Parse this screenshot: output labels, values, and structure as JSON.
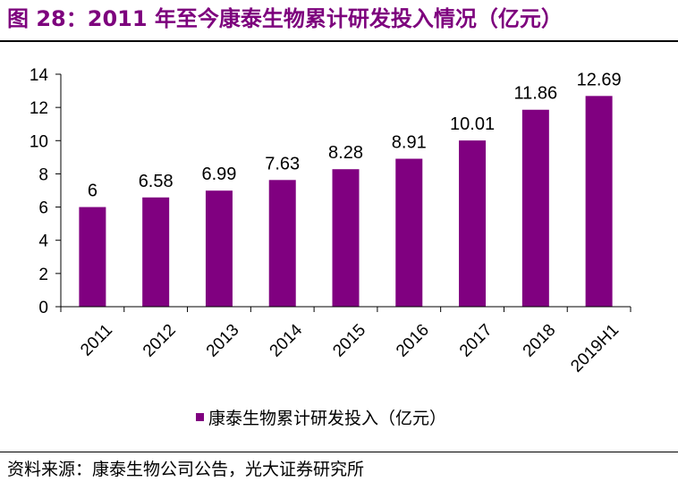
{
  "figure": {
    "title": "图 28：2011 年至今康泰生物累计研发投入情况（亿元）",
    "source": "资料来源：康泰生物公司公告，光大证券研究所"
  },
  "colors": {
    "bar": "#800080",
    "title": "#7d007d"
  },
  "chart_data": {
    "type": "bar",
    "categories": [
      "2011",
      "2012",
      "2013",
      "2014",
      "2015",
      "2016",
      "2017",
      "2018",
      "2019H1"
    ],
    "series": [
      {
        "name": "康泰生物累计研发投入（亿元）",
        "values": [
          6,
          6.58,
          6.99,
          7.63,
          8.28,
          8.91,
          10.01,
          11.86,
          12.69
        ],
        "labels": [
          "6",
          "6.58",
          "6.99",
          "7.63",
          "8.28",
          "8.91",
          "10.01",
          "11.86",
          "12.69"
        ]
      }
    ],
    "ylim": [
      0,
      14
    ],
    "yticks": [
      0,
      2,
      4,
      6,
      8,
      10,
      12,
      14
    ],
    "grid": false,
    "legend": "bottom-center"
  }
}
